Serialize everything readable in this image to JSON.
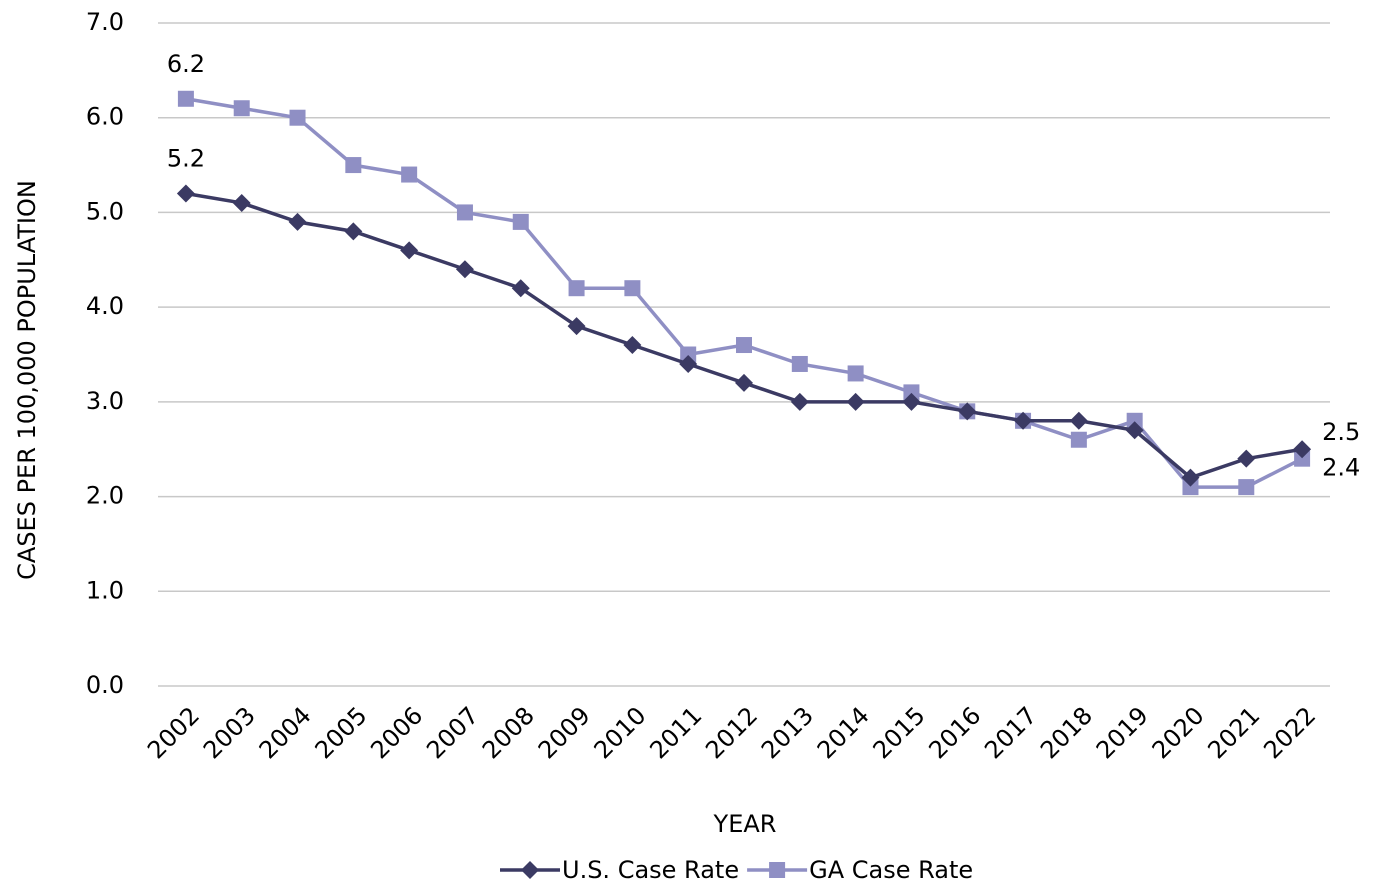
{
  "chart_data": {
    "type": "line",
    "x_label": "YEAR",
    "y_label": "CASES PER 100,000 POPULATION",
    "categories": [
      "2002",
      "2003",
      "2004",
      "2005",
      "2006",
      "2007",
      "2008",
      "2009",
      "2010",
      "2011",
      "2012",
      "2013",
      "2014",
      "2015",
      "2016",
      "2017",
      "2018",
      "2019",
      "2020",
      "2021",
      "2022"
    ],
    "series": [
      {
        "name": "U.S. Case Rate",
        "color": "#3b3a63",
        "marker": "diamond",
        "values": [
          5.2,
          5.1,
          4.9,
          4.8,
          4.6,
          4.4,
          4.2,
          3.8,
          3.6,
          3.4,
          3.2,
          3.0,
          3.0,
          3.0,
          2.9,
          2.8,
          2.8,
          2.7,
          2.2,
          2.4,
          2.5
        ],
        "value_labels": [
          "5.2",
          null,
          null,
          null,
          null,
          null,
          null,
          null,
          null,
          null,
          null,
          null,
          null,
          null,
          null,
          null,
          null,
          null,
          null,
          null,
          "2.5"
        ]
      },
      {
        "name": "GA Case Rate",
        "color": "#8f8fc4",
        "marker": "square",
        "values": [
          6.2,
          6.1,
          6.0,
          5.5,
          5.4,
          5.0,
          4.9,
          4.2,
          4.2,
          3.5,
          3.6,
          3.4,
          3.3,
          3.1,
          2.9,
          2.8,
          2.6,
          2.8,
          2.1,
          2.1,
          2.4
        ],
        "value_labels": [
          "6.2",
          null,
          null,
          null,
          null,
          null,
          null,
          null,
          null,
          null,
          null,
          null,
          null,
          null,
          null,
          null,
          null,
          null,
          null,
          null,
          "2.4"
        ]
      }
    ],
    "ylim": [
      0,
      7
    ],
    "yticks": [
      {
        "value": 0,
        "label": "0.0"
      },
      {
        "value": 1,
        "label": "1.0"
      },
      {
        "value": 2,
        "label": "2.0"
      },
      {
        "value": 3,
        "label": "3.0"
      },
      {
        "value": 4,
        "label": "4.0"
      },
      {
        "value": 5,
        "label": "5.0"
      },
      {
        "value": 6,
        "label": "6.0"
      },
      {
        "value": 7,
        "label": "7.0"
      }
    ],
    "grid": true,
    "legend": "bottom"
  }
}
